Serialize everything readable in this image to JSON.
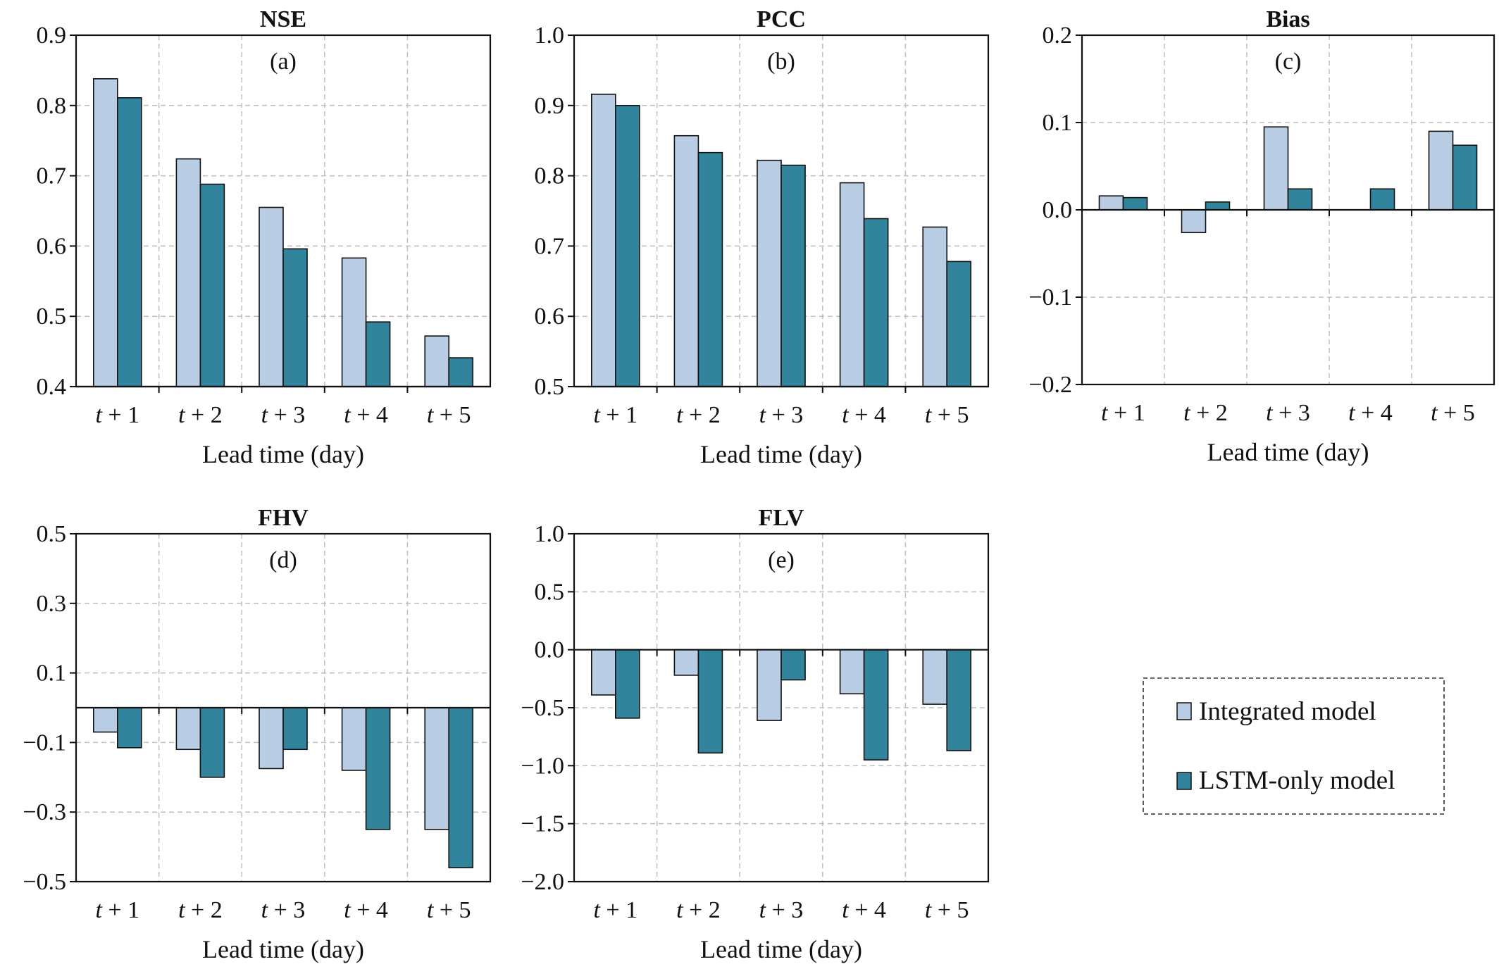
{
  "colors": {
    "integrated": "#b9cde5",
    "lstm": "#31849b",
    "bar_edge": "#111111",
    "grid": "#bfbfbf"
  },
  "legend": {
    "integrated_label": "Integrated model",
    "lstm_label": "LSTM-only model"
  },
  "chart_data": [
    {
      "type": "bar",
      "title": "NSE",
      "panel_label": "(a)",
      "xlabel": "Lead time (day)",
      "ylabel": "",
      "categories": [
        "t + 1",
        "t + 2",
        "t + 3",
        "t + 4",
        "t + 5"
      ],
      "ylim": [
        0.4,
        0.9
      ],
      "yticks": [
        "0.9",
        "0.8",
        "0.7",
        "0.6",
        "0.5",
        "0.4"
      ],
      "grid": true,
      "series": [
        {
          "name": "Integrated model",
          "values": [
            0.838,
            0.724,
            0.655,
            0.583,
            0.472
          ]
        },
        {
          "name": "LSTM-only model",
          "values": [
            0.811,
            0.688,
            0.596,
            0.492,
            0.441
          ]
        }
      ]
    },
    {
      "type": "bar",
      "title": "PCC",
      "panel_label": "(b)",
      "xlabel": "Lead time (day)",
      "ylabel": "",
      "categories": [
        "t + 1",
        "t + 2",
        "t + 3",
        "t + 4",
        "t + 5"
      ],
      "ylim": [
        0.5,
        1.0
      ],
      "yticks": [
        "1.0",
        "0.9",
        "0.8",
        "0.7",
        "0.6",
        "0.5"
      ],
      "grid": true,
      "series": [
        {
          "name": "Integrated model",
          "values": [
            0.916,
            0.857,
            0.822,
            0.79,
            0.727
          ]
        },
        {
          "name": "LSTM-only model",
          "values": [
            0.9,
            0.833,
            0.815,
            0.739,
            0.678
          ]
        }
      ]
    },
    {
      "type": "bar",
      "title": "Bias",
      "panel_label": "(c)",
      "xlabel": "Lead time (day)",
      "ylabel": "",
      "categories": [
        "t + 1",
        "t + 2",
        "t + 3",
        "t + 4",
        "t + 5"
      ],
      "ylim": [
        -0.2,
        0.2
      ],
      "yticks": [
        "0.2",
        "0.1",
        "0.0",
        "−0.1",
        "−0.2"
      ],
      "grid": true,
      "series": [
        {
          "name": "Integrated model",
          "values": [
            0.016,
            -0.026,
            0.095,
            0.0,
            0.09
          ]
        },
        {
          "name": "LSTM-only model",
          "values": [
            0.014,
            0.009,
            0.024,
            0.024,
            0.074
          ]
        }
      ]
    },
    {
      "type": "bar",
      "title": "FHV",
      "panel_label": "(d)",
      "xlabel": "Lead time (day)",
      "ylabel": "",
      "categories": [
        "t + 1",
        "t + 2",
        "t + 3",
        "t + 4",
        "t + 5"
      ],
      "ylim": [
        -0.5,
        0.5
      ],
      "yticks": [
        "0.5",
        "0.3",
        "0.1",
        "−0.1",
        "−0.3",
        "−0.5"
      ],
      "grid": true,
      "series": [
        {
          "name": "Integrated model",
          "values": [
            -0.07,
            -0.12,
            -0.175,
            -0.18,
            -0.35
          ]
        },
        {
          "name": "LSTM-only model",
          "values": [
            -0.115,
            -0.2,
            -0.12,
            -0.35,
            -0.46
          ]
        }
      ]
    },
    {
      "type": "bar",
      "title": "FLV",
      "panel_label": "(e)",
      "xlabel": "Lead time (day)",
      "ylabel": "",
      "categories": [
        "t + 1",
        "t + 2",
        "t + 3",
        "t + 4",
        "t + 5"
      ],
      "ylim": [
        -2.0,
        1.0
      ],
      "yticks": [
        "1.0",
        "0.5",
        "0.0",
        "−0.5",
        "−1.0",
        "−1.5",
        "−2.0"
      ],
      "grid": true,
      "series": [
        {
          "name": "Integrated model",
          "values": [
            -0.39,
            -0.22,
            -0.61,
            -0.38,
            -0.47
          ]
        },
        {
          "name": "LSTM-only model",
          "values": [
            -0.59,
            -0.89,
            -0.26,
            -0.95,
            -0.87
          ]
        }
      ]
    }
  ]
}
